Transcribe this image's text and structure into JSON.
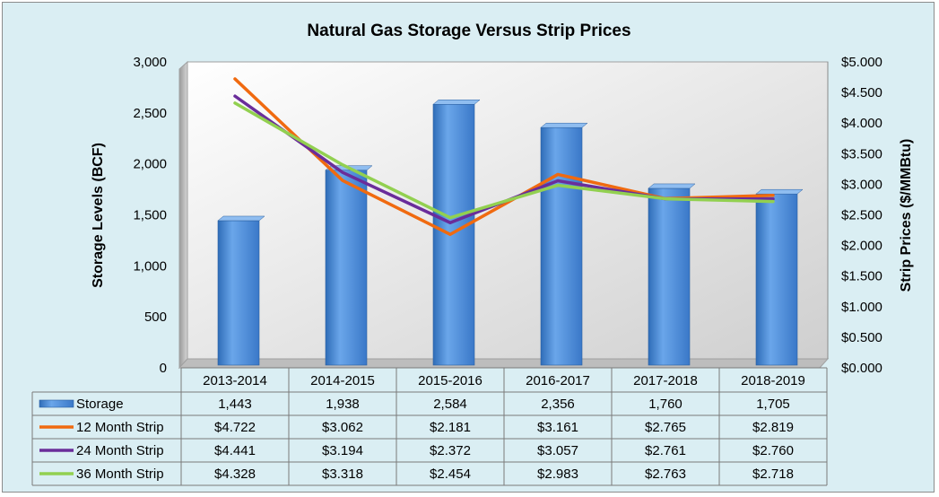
{
  "chart_data": {
    "type": "bar+line",
    "title": "Natural Gas Storage Versus Strip Prices",
    "ylabel_left": "Storage Levels (BCF)",
    "ylabel_right": "Strip Prices ($/MMBtu)",
    "ylim_left": [
      0,
      3000
    ],
    "ylim_right": [
      0,
      5.0
    ],
    "yticks_left": [
      "0",
      "500",
      "1,000",
      "1,500",
      "2,000",
      "2,500",
      "3,000"
    ],
    "yticks_right": [
      "$0.000",
      "$0.500",
      "$1.000",
      "$1.500",
      "$2.000",
      "$2.500",
      "$3.000",
      "$3.500",
      "$4.000",
      "$4.500",
      "$5.000"
    ],
    "categories": [
      "2013-2014",
      "2014-2015",
      "2015-2016",
      "2016-2017",
      "2017-2018",
      "2018-2019"
    ],
    "bar_series": {
      "name": "Storage",
      "values": [
        1443,
        1938,
        2584,
        2356,
        1760,
        1705
      ],
      "labels": [
        "1,443",
        "1,938",
        "2,584",
        "2,356",
        "1,760",
        "1,705"
      ],
      "color": "#4f8fd9"
    },
    "line_series": [
      {
        "name": "12 Month Strip",
        "color": "#f06a10",
        "values": [
          4.722,
          3.062,
          2.181,
          3.161,
          2.765,
          2.819
        ],
        "labels": [
          "$4.722",
          "$3.062",
          "$2.181",
          "$3.161",
          "$2.765",
          "$2.819"
        ]
      },
      {
        "name": "24 Month Strip",
        "color": "#6a2d9a",
        "values": [
          4.441,
          3.194,
          2.372,
          3.057,
          2.761,
          2.76
        ],
        "labels": [
          "$4.441",
          "$3.194",
          "$2.372",
          "$3.057",
          "$2.761",
          "$2.760"
        ]
      },
      {
        "name": "36 Month Strip",
        "color": "#92d050",
        "values": [
          4.328,
          3.318,
          2.454,
          2.983,
          2.763,
          2.718
        ],
        "labels": [
          "$4.328",
          "$3.318",
          "$2.454",
          "$2.983",
          "$2.763",
          "$2.718"
        ]
      }
    ],
    "grid": false,
    "legend": "data-table"
  }
}
